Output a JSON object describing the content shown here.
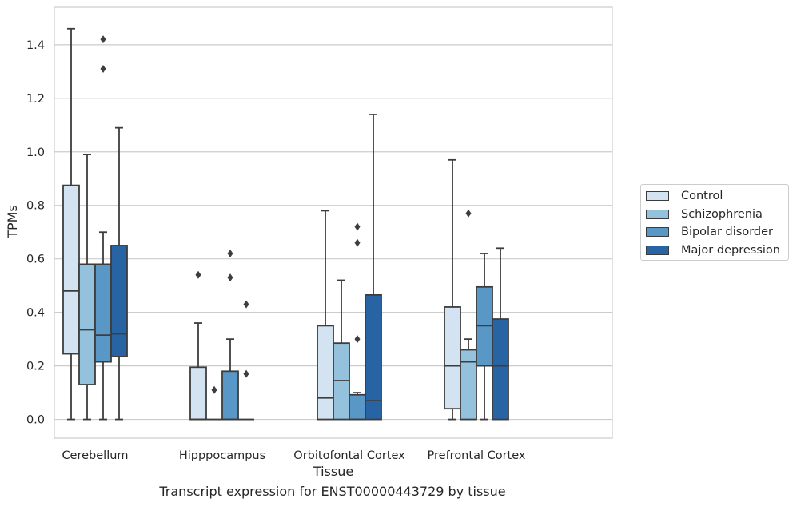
{
  "caption": "Transcript expression for ENST00000443729 by tissue",
  "chart_data": {
    "type": "box",
    "xlabel": "Tissue",
    "ylabel": "TPMs",
    "ylim": [
      -0.07,
      1.54
    ],
    "yticks": [
      "0.0",
      "0.2",
      "0.4",
      "0.6",
      "0.8",
      "1.0",
      "1.2",
      "1.4"
    ],
    "ytick_values": [
      0.0,
      0.2,
      0.4,
      0.6,
      0.8,
      1.0,
      1.2,
      1.4
    ],
    "grid": "horizontal",
    "legend_position": "right",
    "categories": [
      "Cerebellum",
      "Hipppocampus",
      "Orbitofontal Cortex",
      "Prefrontal Cortex"
    ],
    "series": [
      {
        "name": "Control",
        "color": "#d3e3f1",
        "boxes": [
          {
            "min": 0.0,
            "q1": 0.245,
            "median": 0.48,
            "q3": 0.875,
            "max": 1.46,
            "outliers": []
          },
          {
            "min": 0.0,
            "q1": 0.0,
            "median": 0.0,
            "q3": 0.195,
            "max": 0.36,
            "outliers": [
              0.54
            ]
          },
          {
            "min": 0.0,
            "q1": 0.0,
            "median": 0.08,
            "q3": 0.35,
            "max": 0.78,
            "outliers": []
          },
          {
            "min": 0.0,
            "q1": 0.04,
            "median": 0.2,
            "q3": 0.42,
            "max": 0.97,
            "outliers": []
          }
        ]
      },
      {
        "name": "Schizophrenia",
        "color": "#94c1dc",
        "boxes": [
          {
            "min": 0.0,
            "q1": 0.13,
            "median": 0.335,
            "q3": 0.58,
            "max": 0.99,
            "outliers": []
          },
          {
            "min": 0.0,
            "q1": 0.0,
            "median": 0.0,
            "q3": 0.0,
            "max": 0.0,
            "outliers": [
              0.11
            ]
          },
          {
            "min": 0.0,
            "q1": 0.0,
            "median": 0.145,
            "q3": 0.285,
            "max": 0.52,
            "outliers": []
          },
          {
            "min": 0.0,
            "q1": 0.0,
            "median": 0.215,
            "q3": 0.26,
            "max": 0.3,
            "outliers": [
              0.77
            ]
          }
        ]
      },
      {
        "name": "Bipolar disorder",
        "color": "#5897c6",
        "boxes": [
          {
            "min": 0.0,
            "q1": 0.215,
            "median": 0.315,
            "q3": 0.58,
            "max": 0.7,
            "outliers": [
              1.31,
              1.42
            ]
          },
          {
            "min": 0.0,
            "q1": 0.0,
            "median": 0.0,
            "q3": 0.18,
            "max": 0.3,
            "outliers": [
              0.53,
              0.62
            ]
          },
          {
            "min": 0.0,
            "q1": 0.0,
            "median": 0.0,
            "q3": 0.092,
            "max": 0.1,
            "outliers": [
              0.3,
              0.66,
              0.72
            ]
          },
          {
            "min": 0.0,
            "q1": 0.2,
            "median": 0.35,
            "q3": 0.495,
            "max": 0.62,
            "outliers": []
          }
        ]
      },
      {
        "name": "Major depression",
        "color": "#2864a3",
        "boxes": [
          {
            "min": 0.0,
            "q1": 0.235,
            "median": 0.32,
            "q3": 0.65,
            "max": 1.09,
            "outliers": []
          },
          {
            "min": 0.0,
            "q1": 0.0,
            "median": 0.0,
            "q3": 0.0,
            "max": 0.0,
            "outliers": [
              0.17,
              0.43
            ]
          },
          {
            "min": 0.0,
            "q1": 0.0,
            "median": 0.07,
            "q3": 0.465,
            "max": 1.14,
            "outliers": []
          },
          {
            "min": 0.0,
            "q1": 0.0,
            "median": 0.2,
            "q3": 0.375,
            "max": 0.64,
            "outliers": []
          }
        ]
      }
    ]
  }
}
